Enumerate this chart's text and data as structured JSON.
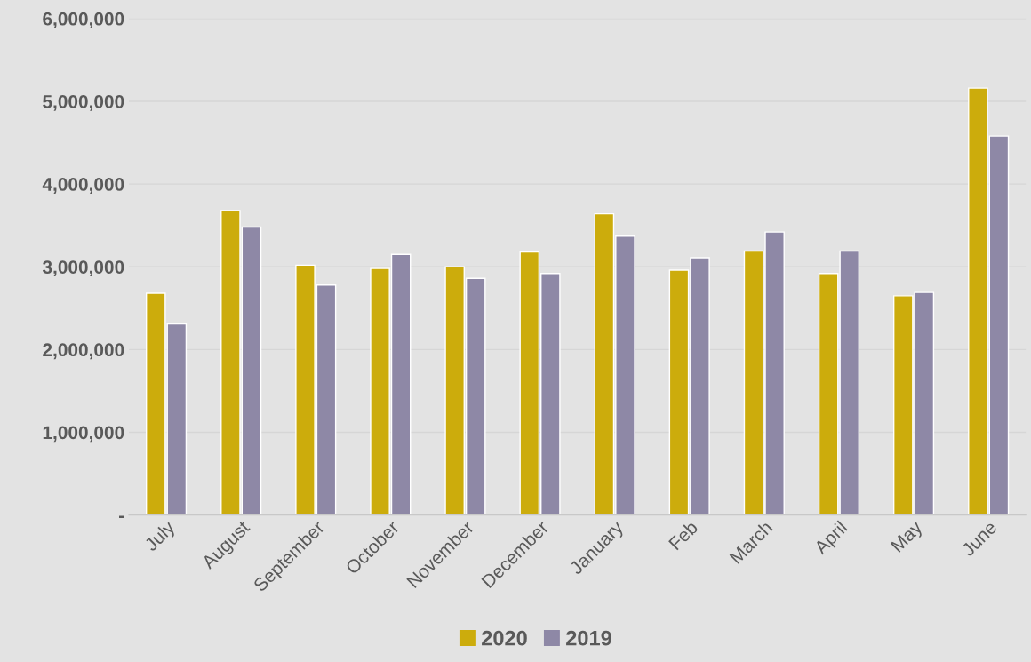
{
  "chart_data": {
    "type": "bar",
    "categories": [
      "July",
      "August",
      "September",
      "October",
      "November",
      "December",
      "January",
      "Feb",
      "March",
      "April",
      "May",
      "June"
    ],
    "series": [
      {
        "name": "2020",
        "color": "#ccac0c",
        "values": [
          2680000,
          3680000,
          3020000,
          2980000,
          3000000,
          3180000,
          3640000,
          2960000,
          3190000,
          2920000,
          2650000,
          5160000
        ]
      },
      {
        "name": "2019",
        "color": "#8e88a6",
        "values": [
          2310000,
          3480000,
          2780000,
          3150000,
          2860000,
          2920000,
          3370000,
          3110000,
          3420000,
          3190000,
          2690000,
          4580000
        ]
      }
    ],
    "ylim": [
      0,
      6000000
    ],
    "yticks": [
      {
        "value": 0,
        "label": "-"
      },
      {
        "value": 1000000,
        "label": "1,000,000"
      },
      {
        "value": 2000000,
        "label": "2,000,000"
      },
      {
        "value": 3000000,
        "label": "3,000,000"
      },
      {
        "value": 4000000,
        "label": "4,000,000"
      },
      {
        "value": 5000000,
        "label": "5,000,000"
      },
      {
        "value": 6000000,
        "label": "6,000,000"
      }
    ],
    "grid": "y",
    "legend": "bottom"
  }
}
